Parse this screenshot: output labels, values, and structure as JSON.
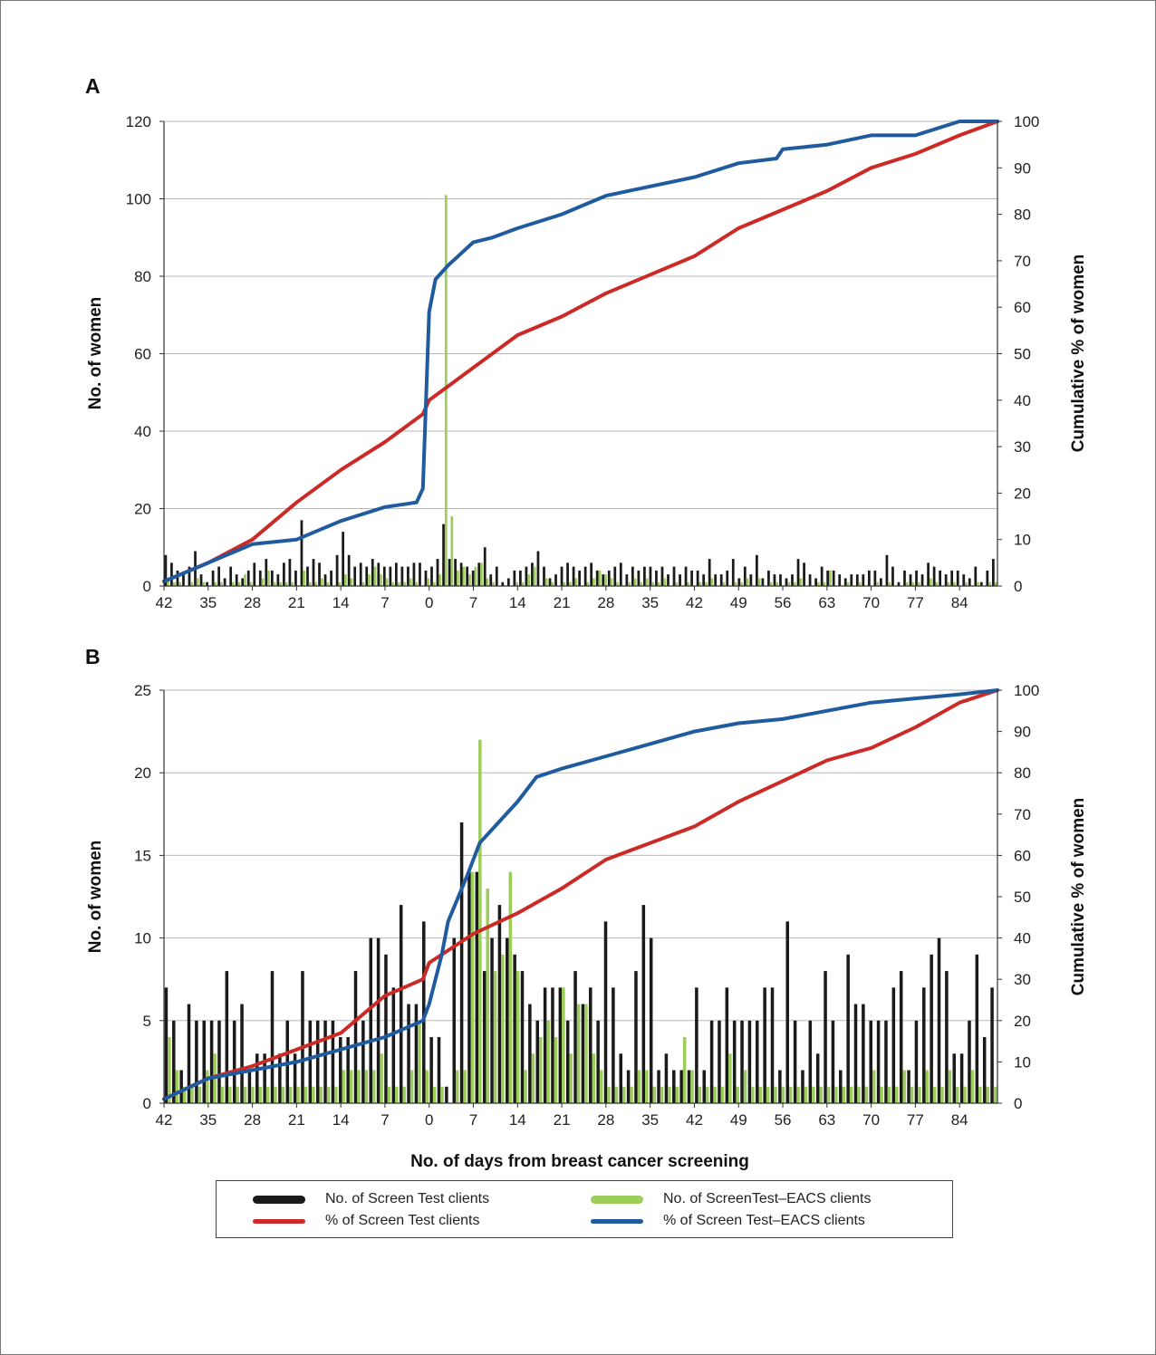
{
  "figure": {
    "xlabel": "No. of days from breast cancer screening",
    "colors": {
      "screen_test_bars": "#1a1a1a",
      "eacs_bars": "#9ccc5a",
      "screen_test_line": "#cc2a27",
      "eacs_line": "#1f5b9e",
      "grid": "#b8b8b8"
    },
    "legend": [
      {
        "label": "No. of Screen Test clients",
        "color": "#1a1a1a",
        "kind": "bar"
      },
      {
        "label": "No. of ScreenTest–EACS clients",
        "color": "#9ccc5a",
        "kind": "bar"
      },
      {
        "label": "% of Screen Test clients",
        "color": "#cc2a27",
        "kind": "line"
      },
      {
        "label": "% of Screen Test–EACS clients",
        "color": "#1f5b9e",
        "kind": "line"
      }
    ]
  },
  "chart_data": [
    {
      "panel": "A",
      "type": "bar",
      "ylabel_left": "No. of women",
      "ylabel_right": "Cumulative % of women",
      "ylim_left": [
        0,
        120
      ],
      "ylim_right": [
        0,
        100
      ],
      "yticks_left": [
        0,
        20,
        40,
        60,
        80,
        100,
        120
      ],
      "yticks_right": [
        0,
        10,
        20,
        30,
        40,
        50,
        60,
        70,
        80,
        90,
        100
      ],
      "xlim": [
        -42,
        90
      ],
      "xticks": [
        -42,
        -35,
        -28,
        -21,
        -14,
        -7,
        0,
        7,
        14,
        21,
        28,
        35,
        42,
        49,
        56,
        63,
        70,
        77,
        84
      ],
      "xtick_labels": [
        "42",
        "35",
        "28",
        "21",
        "14",
        "7",
        "0",
        "7",
        "14",
        "21",
        "28",
        "35",
        "42",
        "49",
        "56",
        "63",
        "70",
        "77",
        "84"
      ],
      "grid": true,
      "bar_series": [
        {
          "name": "No. of Screen Test clients",
          "values": [
            8,
            6,
            4,
            3,
            5,
            9,
            3,
            1,
            4,
            5,
            2,
            5,
            3,
            2,
            4,
            6,
            4,
            7,
            4,
            3,
            6,
            7,
            4,
            17,
            5,
            7,
            6,
            3,
            4,
            8,
            14,
            8,
            5,
            6,
            5,
            7,
            6,
            5,
            5,
            6,
            5,
            5,
            6,
            6,
            4,
            5,
            7,
            16,
            7,
            7,
            6,
            5,
            4,
            6,
            10,
            3,
            5,
            1,
            2,
            4,
            4,
            5,
            6,
            9,
            5,
            2,
            3,
            5,
            6,
            5,
            4,
            5,
            6,
            4,
            3,
            4,
            5,
            6,
            3,
            5,
            4,
            5,
            5,
            4,
            5,
            3,
            5,
            3,
            5,
            4,
            4,
            3,
            7,
            3,
            3,
            4,
            7,
            2,
            5,
            3,
            8,
            2,
            4,
            3,
            3,
            2,
            3,
            7,
            6,
            3,
            2,
            5,
            4,
            4,
            3,
            2,
            3,
            3,
            3,
            4,
            4,
            2,
            8,
            5,
            1,
            4,
            3,
            4,
            3,
            6,
            5,
            4,
            3,
            4,
            4,
            3,
            2,
            5,
            1,
            4,
            7
          ]
        },
        {
          "name": "No. of ScreenTest–EACS clients",
          "values": [
            2,
            1,
            1,
            0,
            1,
            2,
            1,
            0,
            1,
            1,
            0,
            1,
            1,
            3,
            1,
            0,
            2,
            4,
            1,
            1,
            1,
            1,
            0,
            4,
            1,
            1,
            2,
            1,
            0,
            1,
            3,
            2,
            0,
            1,
            3,
            5,
            3,
            2,
            1,
            1,
            1,
            2,
            1,
            0,
            2,
            1,
            3,
            101,
            18,
            4,
            5,
            3,
            5,
            6,
            2,
            1,
            0,
            0,
            0,
            1,
            1,
            3,
            5,
            0,
            2,
            1,
            0,
            1,
            1,
            2,
            0,
            1,
            2,
            4,
            3,
            2,
            1,
            0,
            1,
            2,
            1,
            2,
            1,
            1,
            2,
            0,
            1,
            0,
            1,
            0,
            1,
            1,
            2,
            0,
            1,
            0,
            1,
            1,
            2,
            0,
            2,
            0,
            1,
            1,
            0,
            1,
            1,
            2,
            0,
            0,
            1,
            1,
            4,
            0,
            0,
            1,
            0,
            1,
            0,
            0,
            1,
            0,
            1,
            0,
            0,
            1,
            1,
            1,
            0,
            2,
            1,
            0,
            1,
            1,
            0,
            1,
            0,
            1,
            0,
            1,
            1
          ]
        }
      ],
      "line_series": [
        {
          "name": "% of Screen Test clients",
          "axis": "right",
          "points": [
            [
              -42,
              1
            ],
            [
              -35,
              5
            ],
            [
              -28,
              10
            ],
            [
              -21,
              18
            ],
            [
              -14,
              25
            ],
            [
              -7,
              31
            ],
            [
              -1,
              37
            ],
            [
              0,
              40
            ],
            [
              7,
              47
            ],
            [
              14,
              54
            ],
            [
              21,
              58
            ],
            [
              28,
              63
            ],
            [
              35,
              67
            ],
            [
              42,
              71
            ],
            [
              49,
              77
            ],
            [
              56,
              81
            ],
            [
              63,
              85
            ],
            [
              70,
              90
            ],
            [
              77,
              93
            ],
            [
              84,
              97
            ],
            [
              88,
              99
            ],
            [
              90,
              100
            ]
          ]
        },
        {
          "name": "% of Screen Test–EACS clients",
          "axis": "right",
          "points": [
            [
              -42,
              1
            ],
            [
              -35,
              5
            ],
            [
              -28,
              9
            ],
            [
              -21,
              10
            ],
            [
              -14,
              14
            ],
            [
              -7,
              17
            ],
            [
              -2,
              18
            ],
            [
              -1,
              21
            ],
            [
              0,
              59
            ],
            [
              1,
              66
            ],
            [
              3,
              69
            ],
            [
              7,
              74
            ],
            [
              10,
              75
            ],
            [
              14,
              77
            ],
            [
              21,
              80
            ],
            [
              28,
              84
            ],
            [
              35,
              86
            ],
            [
              42,
              88
            ],
            [
              49,
              91
            ],
            [
              55,
              92
            ],
            [
              56,
              94
            ],
            [
              63,
              95
            ],
            [
              70,
              97
            ],
            [
              77,
              97
            ],
            [
              84,
              100
            ],
            [
              90,
              100
            ]
          ]
        }
      ]
    },
    {
      "panel": "B",
      "type": "bar",
      "ylabel_left": "No. of women",
      "ylabel_right": "Cumulative % of women",
      "ylim_left": [
        0,
        25
      ],
      "ylim_right": [
        0,
        100
      ],
      "yticks_left": [
        0,
        5,
        10,
        15,
        20,
        25
      ],
      "yticks_right": [
        0,
        10,
        20,
        30,
        40,
        50,
        60,
        70,
        80,
        90,
        100
      ],
      "xlim": [
        -42,
        90
      ],
      "xticks": [
        -42,
        -35,
        -28,
        -21,
        -14,
        -7,
        0,
        7,
        14,
        21,
        28,
        35,
        42,
        49,
        56,
        63,
        70,
        77,
        84
      ],
      "xtick_labels": [
        "42",
        "35",
        "28",
        "21",
        "14",
        "7",
        "0",
        "7",
        "14",
        "21",
        "28",
        "35",
        "42",
        "49",
        "56",
        "63",
        "70",
        "77",
        "84"
      ],
      "grid": true,
      "bar_series": [
        {
          "name": "No. of Screen Test clients",
          "values": [
            7,
            5,
            2,
            6,
            5,
            5,
            5,
            5,
            8,
            5,
            6,
            2,
            3,
            3,
            8,
            3,
            5,
            3,
            8,
            5,
            5,
            5,
            5,
            4,
            4,
            8,
            5,
            10,
            10,
            9,
            7,
            12,
            6,
            6,
            11,
            4,
            4,
            1,
            10,
            17,
            14,
            14,
            8,
            10,
            12,
            10,
            9,
            8,
            6,
            5,
            7,
            7,
            7,
            5,
            8,
            6,
            7,
            5,
            11,
            7,
            3,
            2,
            8,
            12,
            10,
            2,
            3,
            2,
            2,
            2,
            7,
            2,
            5,
            5,
            7,
            5,
            5,
            5,
            5,
            7,
            7,
            2,
            11,
            5,
            2,
            5,
            3,
            8,
            5,
            2,
            9,
            6,
            6,
            5,
            5,
            5,
            7,
            8,
            2,
            5,
            7,
            9,
            10,
            8,
            3,
            3,
            5,
            9,
            4,
            7
          ]
        },
        {
          "name": "No. of ScreenTest–EACS clients",
          "values": [
            4,
            2,
            1,
            1,
            1,
            2,
            3,
            1,
            1,
            1,
            1,
            1,
            1,
            1,
            1,
            1,
            1,
            1,
            1,
            1,
            1,
            1,
            1,
            2,
            2,
            2,
            2,
            2,
            3,
            1,
            1,
            1,
            2,
            5,
            2,
            1,
            1,
            0,
            2,
            2,
            14,
            22,
            13,
            8,
            9,
            14,
            8,
            2,
            3,
            4,
            5,
            4,
            7,
            3,
            6,
            6,
            3,
            2,
            1,
            1,
            1,
            1,
            2,
            2,
            1,
            1,
            1,
            1,
            4,
            2,
            1,
            1,
            1,
            1,
            3,
            1,
            2,
            1,
            1,
            1,
            1,
            1,
            1,
            1,
            1,
            1,
            1,
            1,
            1,
            1,
            1,
            1,
            1,
            2,
            1,
            1,
            1,
            2,
            1,
            1,
            2,
            1,
            1,
            2,
            1,
            1,
            2,
            1,
            1,
            1
          ]
        }
      ],
      "line_series": [
        {
          "name": "% of Screen Test clients",
          "axis": "right",
          "points": [
            [
              -42,
              1
            ],
            [
              -35,
              6
            ],
            [
              -28,
              9
            ],
            [
              -21,
              13
            ],
            [
              -14,
              17
            ],
            [
              -7,
              26
            ],
            [
              -1,
              30
            ],
            [
              0,
              34
            ],
            [
              7,
              41
            ],
            [
              14,
              46
            ],
            [
              21,
              52
            ],
            [
              28,
              59
            ],
            [
              35,
              63
            ],
            [
              42,
              67
            ],
            [
              49,
              73
            ],
            [
              56,
              78
            ],
            [
              63,
              83
            ],
            [
              70,
              86
            ],
            [
              77,
              91
            ],
            [
              84,
              97
            ],
            [
              88,
              99
            ],
            [
              90,
              100
            ]
          ]
        },
        {
          "name": "% of Screen Test–EACS clients",
          "axis": "right",
          "points": [
            [
              -42,
              1
            ],
            [
              -35,
              6
            ],
            [
              -28,
              8
            ],
            [
              -21,
              10
            ],
            [
              -14,
              13
            ],
            [
              -7,
              16
            ],
            [
              -1,
              20
            ],
            [
              0,
              24
            ],
            [
              2,
              36
            ],
            [
              3,
              44
            ],
            [
              6,
              55
            ],
            [
              8,
              63
            ],
            [
              11,
              68
            ],
            [
              14,
              73
            ],
            [
              17,
              79
            ],
            [
              21,
              81
            ],
            [
              28,
              84
            ],
            [
              35,
              87
            ],
            [
              42,
              90
            ],
            [
              49,
              92
            ],
            [
              56,
              93
            ],
            [
              63,
              95
            ],
            [
              70,
              97
            ],
            [
              77,
              98
            ],
            [
              84,
              99
            ],
            [
              90,
              100
            ]
          ]
        }
      ]
    }
  ]
}
